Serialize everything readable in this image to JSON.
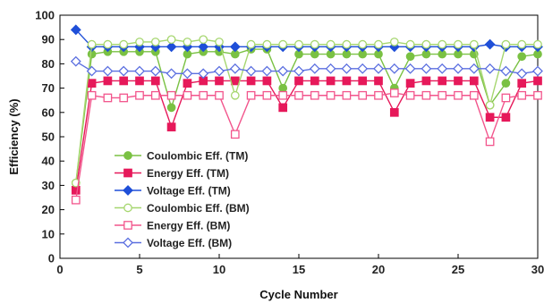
{
  "chart_data": {
    "type": "line",
    "xlabel": "Cycle Number",
    "ylabel": "Efficiency (%)",
    "xlim": [
      0,
      30
    ],
    "ylim": [
      0,
      100
    ],
    "x_ticks": [
      0,
      5,
      10,
      15,
      20,
      25,
      30
    ],
    "y_ticks": [
      0,
      10,
      20,
      30,
      40,
      50,
      60,
      70,
      80,
      90,
      100
    ],
    "grid": false,
    "legend": "center-left",
    "x": [
      1,
      2,
      3,
      4,
      5,
      6,
      7,
      8,
      9,
      10,
      11,
      12,
      13,
      14,
      15,
      16,
      17,
      18,
      19,
      20,
      21,
      22,
      23,
      24,
      25,
      26,
      27,
      28,
      29,
      30
    ],
    "series": [
      {
        "name": "Coulombic Eff. (TM)",
        "color": "#7ac143",
        "marker": "circle-filled",
        "values": [
          31,
          84,
          85,
          85,
          85,
          85,
          62,
          84,
          85,
          85,
          84,
          86,
          86,
          70,
          84,
          84,
          84,
          84,
          84,
          84,
          70,
          83,
          84,
          84,
          84,
          84,
          63,
          72,
          83,
          84
        ]
      },
      {
        "name": "Energy Eff. (TM)",
        "color": "#e6195a",
        "marker": "square-filled",
        "values": [
          28,
          72,
          73,
          73,
          73,
          73,
          54,
          72,
          73,
          73,
          73,
          73,
          73,
          62,
          73,
          73,
          73,
          73,
          73,
          73,
          60,
          72,
          73,
          73,
          73,
          73,
          58,
          58,
          72,
          73
        ]
      },
      {
        "name": "Voltage Eff. (TM)",
        "color": "#1f4fd8",
        "marker": "diamond-filled",
        "values": [
          94,
          87,
          87,
          87,
          87,
          87,
          87,
          87,
          87,
          87,
          87,
          87,
          87,
          87,
          87,
          87,
          87,
          87,
          87,
          87,
          87,
          87,
          87,
          87,
          87,
          87,
          88,
          87,
          87,
          87
        ]
      },
      {
        "name": "Coulombic Eff. (BM)",
        "color": "#a6d66f",
        "marker": "circle-open",
        "values": [
          31,
          88,
          88,
          88,
          89,
          89,
          90,
          89,
          90,
          89,
          67,
          88,
          88,
          88,
          88,
          88,
          88,
          88,
          88,
          88,
          89,
          88,
          88,
          88,
          88,
          88,
          63,
          88,
          88,
          88
        ]
      },
      {
        "name": "Energy Eff. (BM)",
        "color": "#f2558c",
        "marker": "square-open",
        "values": [
          24,
          67,
          66,
          66,
          67,
          67,
          67,
          67,
          67,
          67,
          51,
          67,
          67,
          67,
          67,
          67,
          67,
          67,
          67,
          67,
          68,
          67,
          67,
          67,
          67,
          67,
          48,
          66,
          67,
          67
        ]
      },
      {
        "name": "Voltage Eff. (BM)",
        "color": "#5b6fe0",
        "marker": "diamond-open",
        "values": [
          81,
          77,
          77,
          77,
          77,
          77,
          76,
          76,
          76,
          77,
          78,
          77,
          77,
          77,
          77,
          78,
          78,
          78,
          78,
          78,
          78,
          78,
          78,
          78,
          78,
          78,
          78,
          77,
          76,
          77
        ]
      }
    ]
  }
}
